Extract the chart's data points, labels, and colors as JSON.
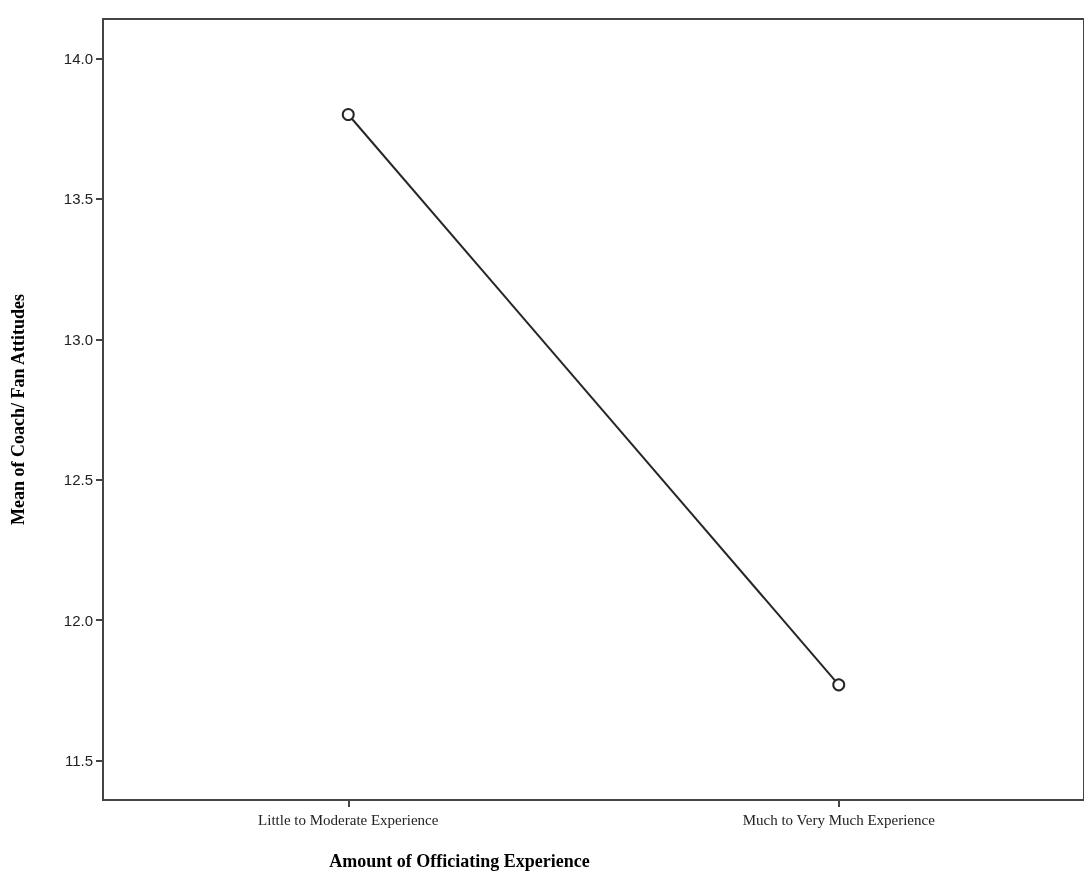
{
  "chart_data": {
    "type": "line",
    "xlabel": "Amount of Officiating Experience",
    "ylabel": "Mean of Coach/ Fan Attitudes",
    "categories": [
      "Little to Moderate Experience",
      "Much to Very Much Experience"
    ],
    "series": [
      {
        "color": "#262626",
        "values": [
          13.8,
          11.77
        ]
      }
    ],
    "ylim": [
      11.36,
      14.14
    ],
    "yticks": [
      {
        "value": 11.5,
        "label": "11.5"
      },
      {
        "value": 12,
        "label": "12.0"
      },
      {
        "value": 12.5,
        "label": "12.5"
      },
      {
        "value": 13,
        "label": "13.0"
      },
      {
        "value": 13.5,
        "label": "13.5"
      },
      {
        "value": 14,
        "label": "14.0"
      }
    ],
    "grid": false,
    "marker": "circle",
    "line_style": "solid"
  }
}
